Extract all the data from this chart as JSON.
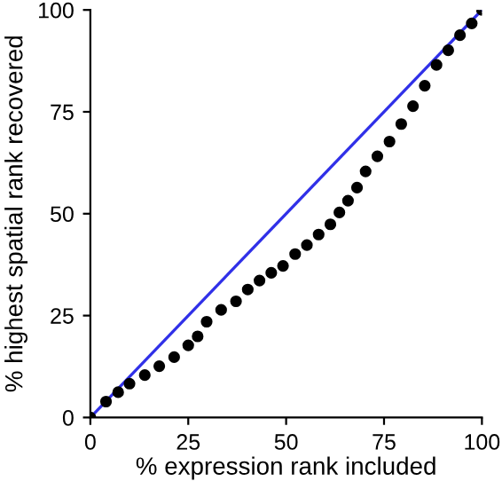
{
  "chart_data": {
    "type": "scatter",
    "xlabel": "% expression rank included",
    "ylabel": "% highest spatial rank recovered",
    "xlim": [
      0,
      100
    ],
    "ylim": [
      0,
      100
    ],
    "xticks": [
      0,
      25,
      50,
      75,
      100
    ],
    "yticks": [
      0,
      25,
      50,
      75,
      100
    ],
    "grid": false,
    "legend": false,
    "series": [
      {
        "type": "line",
        "color": "#3030e8",
        "marker": "none",
        "x": [
          0,
          100
        ],
        "values": [
          0,
          100
        ]
      },
      {
        "color": "#000000",
        "marker": "circle",
        "x": [
          0,
          4,
          7.1,
          10,
          13.9,
          17.6,
          21.4,
          25,
          27.4,
          29.7,
          33.4,
          37.2,
          40.2,
          43.2,
          46.2,
          49.2,
          52.3,
          55.3,
          58.3,
          61.3,
          63.6,
          65.8,
          68.1,
          70.3,
          73.3,
          76.4,
          79.4,
          82.4,
          85.4,
          88.4,
          91.4,
          94.4,
          97.4,
          100
        ],
        "values": [
          0,
          3.9,
          6.2,
          8.3,
          10.4,
          12.6,
          14.8,
          17.7,
          19.9,
          23.5,
          26.4,
          28.5,
          31.4,
          33.6,
          35.5,
          37.2,
          40.1,
          42.3,
          44.9,
          47.4,
          50.3,
          53.2,
          56.4,
          60.4,
          64.1,
          67.7,
          72.0,
          76.4,
          81.4,
          86.5,
          90.1,
          93.8,
          96.7,
          100
        ]
      }
    ]
  }
}
